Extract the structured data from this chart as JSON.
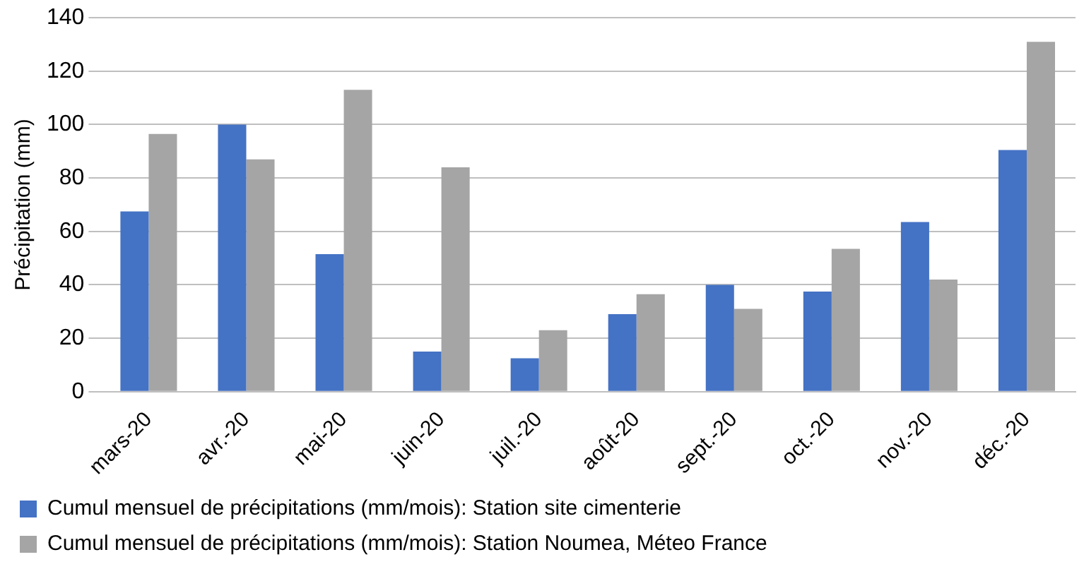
{
  "chart_data": {
    "type": "bar",
    "ylabel": "Précipitation (mm)",
    "categories": [
      "mars-20",
      "avr.-20",
      "mai-20",
      "juin-20",
      "juil.-20",
      "août-20",
      "sept.-20",
      "oct.-20",
      "nov.-20",
      "déc.-20"
    ],
    "series": [
      {
        "name": "Cumul mensuel de précipitations (mm/mois): Station site cimenterie",
        "color": "#4472c4",
        "values": [
          67.5,
          100,
          51.5,
          15,
          12.5,
          29,
          40,
          37.5,
          63.5,
          90.5
        ]
      },
      {
        "name": "Cumul mensuel de précipitations (mm/mois): Station Noumea, Méteo France",
        "color": "#a5a5a5",
        "values": [
          96.5,
          87,
          113,
          84,
          23,
          36.5,
          31,
          53.5,
          42,
          131
        ]
      }
    ],
    "ylim": [
      0,
      140
    ],
    "yticks": [
      0,
      20,
      40,
      60,
      80,
      100,
      120,
      140
    ],
    "grid": "y",
    "legend": "bottom"
  }
}
